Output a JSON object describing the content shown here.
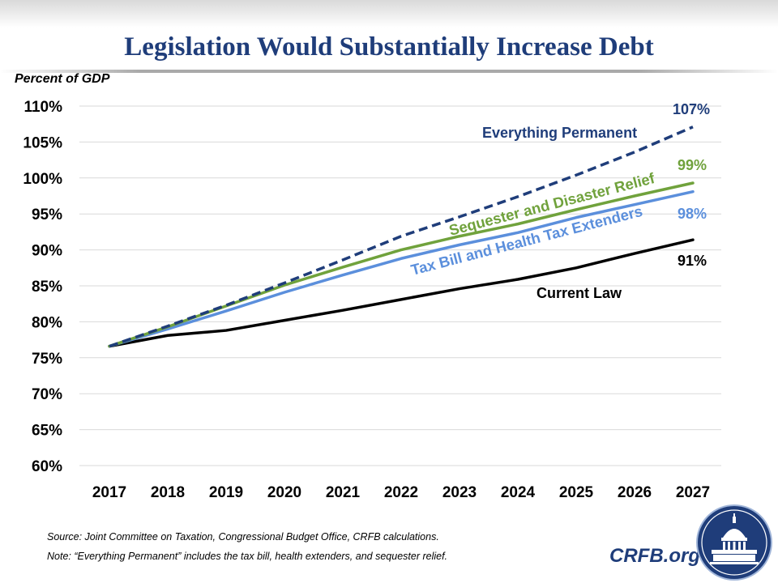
{
  "title": "Legislation Would Substantially Increase Debt",
  "footer": {
    "source": "Source: Joint Committee on Taxation, Congressional Budget Office, CRFB calculations.",
    "note": "Note: “Everything Permanent” includes the tax bill, health extenders, and sequester relief.",
    "brand": "CRFB.org"
  },
  "colors": {
    "title": "#1f3d7a",
    "everything_permanent": "#1f3d7a",
    "sequester": "#70a23c",
    "tax_bill": "#5b8fdc",
    "current_law": "#000000",
    "grid": "#d9d9d9"
  },
  "chart_data": {
    "type": "line",
    "title": "Legislation Would Substantially Increase Debt",
    "ylabel": "Percent of GDP",
    "xlabel": "",
    "x": [
      "2017",
      "2018",
      "2019",
      "2020",
      "2021",
      "2022",
      "2023",
      "2024",
      "2025",
      "2026",
      "2027"
    ],
    "ylim": [
      60,
      110
    ],
    "yticks": [
      60,
      65,
      70,
      75,
      80,
      85,
      90,
      95,
      100,
      105,
      110
    ],
    "ytick_labels": [
      "60%",
      "65%",
      "70%",
      "75%",
      "80%",
      "85%",
      "90%",
      "95%",
      "100%",
      "105%",
      "110%"
    ],
    "grid": "horizontal",
    "series": [
      {
        "key": "everything_permanent",
        "name": "Everything Permanent",
        "style": "dashed",
        "values": [
          76.6,
          79.4,
          82.3,
          85.4,
          88.6,
          91.9,
          94.6,
          97.4,
          100.4,
          103.6,
          107.1
        ],
        "end_label": "107%"
      },
      {
        "key": "sequester",
        "name": "Sequester and Disaster Relief",
        "style": "solid",
        "values": [
          76.6,
          79.3,
          82.2,
          85.1,
          87.6,
          90.0,
          91.9,
          93.6,
          95.6,
          97.5,
          99.3
        ],
        "end_label": "99%"
      },
      {
        "key": "tax_bill",
        "name": "Tax Bill and Health Tax Extenders",
        "style": "solid",
        "values": [
          76.6,
          79.0,
          81.5,
          84.1,
          86.5,
          88.8,
          90.7,
          92.4,
          94.5,
          96.3,
          98.1
        ],
        "end_label": "98%"
      },
      {
        "key": "current_law",
        "name": "Current Law",
        "style": "solid",
        "values": [
          76.6,
          78.1,
          78.8,
          80.2,
          81.6,
          83.1,
          84.6,
          85.9,
          87.5,
          89.5,
          91.4
        ],
        "end_label": "91%"
      }
    ]
  }
}
